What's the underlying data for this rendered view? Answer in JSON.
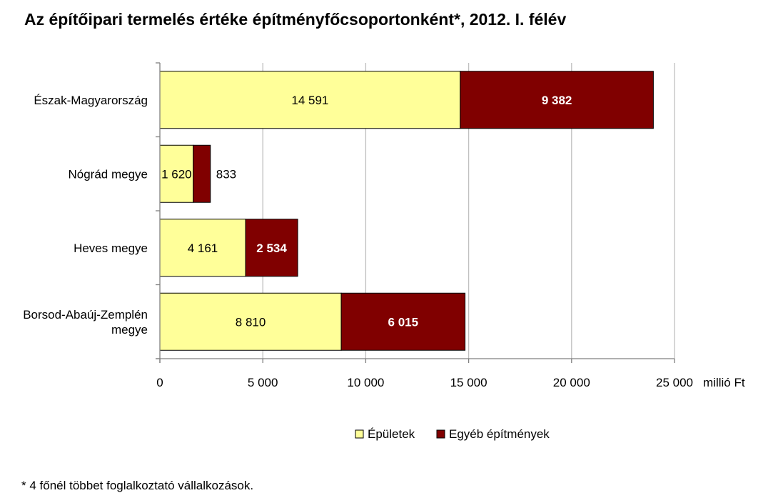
{
  "chart_data": {
    "type": "bar",
    "orientation": "horizontal",
    "stacked": true,
    "title": "Az építőipari termelés értéke építményfőcsoportonként*, 2012. I. félév",
    "categories": [
      "Észak-Magyarország",
      "Nógrád megye",
      "Heves megye",
      "Borsod-Abaúj-Zemplén megye"
    ],
    "series": [
      {
        "name": "Épületek",
        "values": [
          14591,
          1620,
          4161,
          8810
        ],
        "labels": [
          "14 591",
          "1 620",
          "4 161",
          "8 810"
        ],
        "color": "#ffff99"
      },
      {
        "name": "Egyéb építmények",
        "values": [
          9382,
          833,
          2534,
          6015
        ],
        "labels": [
          "9 382",
          "833",
          "2 534",
          "6 015"
        ],
        "color": "#800000"
      }
    ],
    "xlim": [
      0,
      25000
    ],
    "xticks": [
      0,
      5000,
      10000,
      15000,
      20000,
      25000
    ],
    "xtick_labels": [
      "0",
      "5 000",
      "10 000",
      "15 000",
      "20 000",
      "25 000"
    ],
    "xunit": "millió Ft",
    "grid": true,
    "legend_position": "bottom"
  },
  "footnote": "* 4 főnél többet foglalkoztató vállalkozások."
}
